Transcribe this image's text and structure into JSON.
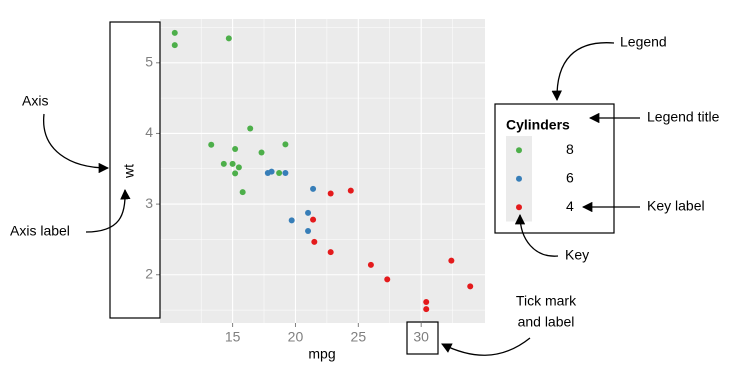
{
  "chart_data": {
    "type": "scatter",
    "x_label": "mpg",
    "y_label": "wt",
    "xlim": [
      9.225,
      35.075
    ],
    "xticks": [
      15,
      20,
      25,
      30
    ],
    "ylim": [
      1.317,
      5.62
    ],
    "yticks": [
      2,
      3,
      4,
      5
    ],
    "grid": true,
    "legend_position": "right",
    "legend_title": "Cylinders",
    "series": [
      {
        "name": "8",
        "color": "#4daf4a",
        "x": [
          18.7,
          14.3,
          16.4,
          17.3,
          15.2,
          10.4,
          10.4,
          14.7,
          15.5,
          15.2,
          13.3,
          19.2,
          15.8,
          15.0
        ],
        "values": [
          3.44,
          3.57,
          4.07,
          3.73,
          3.78,
          5.25,
          5.424,
          5.345,
          3.52,
          3.435,
          3.84,
          3.845,
          3.17,
          3.57
        ]
      },
      {
        "name": "6",
        "color": "#377eb8",
        "x": [
          21.0,
          21.0,
          21.4,
          18.1,
          19.2,
          17.8,
          19.7
        ],
        "values": [
          2.62,
          2.875,
          3.215,
          3.46,
          3.44,
          3.44,
          2.77
        ]
      },
      {
        "name": "4",
        "color": "#e41a1c",
        "x": [
          22.8,
          24.4,
          22.8,
          32.4,
          30.4,
          33.9,
          21.5,
          27.3,
          26.0,
          30.4,
          21.4
        ],
        "values": [
          2.32,
          3.19,
          3.15,
          2.2,
          1.615,
          1.835,
          2.465,
          1.935,
          2.14,
          1.513,
          2.78
        ]
      }
    ],
    "annotations": [
      "Legend",
      "Legend title",
      "Key label",
      "Key",
      "Tick mark",
      "and label",
      "Axis",
      "Axis label"
    ]
  }
}
